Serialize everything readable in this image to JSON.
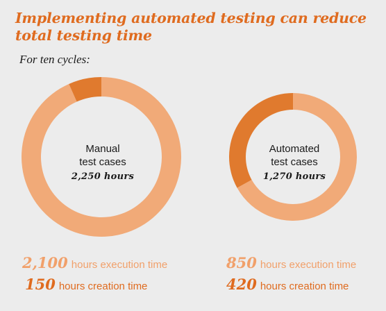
{
  "title": "Implementing automated testing can reduce total testing time",
  "subtitle": "For ten cycles:",
  "colors": {
    "execution": "#f1aa78",
    "creation": "#e07a2e",
    "accent": "#df6b1f"
  },
  "chart_data": [
    {
      "type": "pie",
      "name": "Manual test cases",
      "center_line1": "Manual",
      "center_line2": "test cases",
      "total_label": "2,250 hours",
      "slices": [
        {
          "label": "hours execution time",
          "value": 2100,
          "display": "2,100"
        },
        {
          "label": "hours creation time",
          "value": 150,
          "display": "150"
        }
      ]
    },
    {
      "type": "pie",
      "name": "Automated test cases",
      "center_line1": "Automated",
      "center_line2": "test cases",
      "total_label": "1,270 hours",
      "slices": [
        {
          "label": "hours execution time",
          "value": 850,
          "display": "850"
        },
        {
          "label": "hours creation time",
          "value": 420,
          "display": "420"
        }
      ]
    }
  ]
}
